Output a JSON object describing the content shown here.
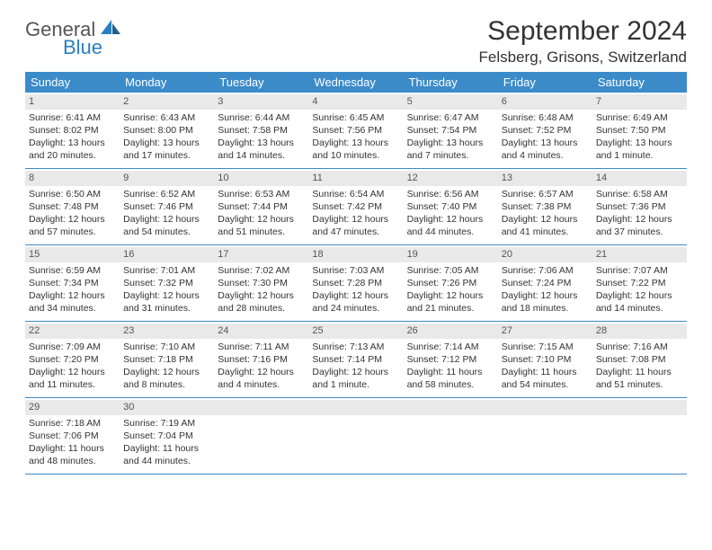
{
  "logo": {
    "textA": "General",
    "textB": "Blue"
  },
  "title": "September 2024",
  "location": "Felsberg, Grisons, Switzerland",
  "colors": {
    "header_bg": "#3b8bc9",
    "header_text": "#ffffff",
    "daynum_bg": "#e9e9e9",
    "body_text": "#333333",
    "rule": "#3b8bc9",
    "logo_blue": "#2a7fbf"
  },
  "typography": {
    "title_fontsize": 30,
    "location_fontsize": 17,
    "dow_fontsize": 13,
    "cell_fontsize": 10.5
  },
  "dow": [
    "Sunday",
    "Monday",
    "Tuesday",
    "Wednesday",
    "Thursday",
    "Friday",
    "Saturday"
  ],
  "days": [
    {
      "n": "1",
      "sunrise": "Sunrise: 6:41 AM",
      "sunset": "Sunset: 8:02 PM",
      "day1": "Daylight: 13 hours",
      "day2": "and 20 minutes."
    },
    {
      "n": "2",
      "sunrise": "Sunrise: 6:43 AM",
      "sunset": "Sunset: 8:00 PM",
      "day1": "Daylight: 13 hours",
      "day2": "and 17 minutes."
    },
    {
      "n": "3",
      "sunrise": "Sunrise: 6:44 AM",
      "sunset": "Sunset: 7:58 PM",
      "day1": "Daylight: 13 hours",
      "day2": "and 14 minutes."
    },
    {
      "n": "4",
      "sunrise": "Sunrise: 6:45 AM",
      "sunset": "Sunset: 7:56 PM",
      "day1": "Daylight: 13 hours",
      "day2": "and 10 minutes."
    },
    {
      "n": "5",
      "sunrise": "Sunrise: 6:47 AM",
      "sunset": "Sunset: 7:54 PM",
      "day1": "Daylight: 13 hours",
      "day2": "and 7 minutes."
    },
    {
      "n": "6",
      "sunrise": "Sunrise: 6:48 AM",
      "sunset": "Sunset: 7:52 PM",
      "day1": "Daylight: 13 hours",
      "day2": "and 4 minutes."
    },
    {
      "n": "7",
      "sunrise": "Sunrise: 6:49 AM",
      "sunset": "Sunset: 7:50 PM",
      "day1": "Daylight: 13 hours",
      "day2": "and 1 minute."
    },
    {
      "n": "8",
      "sunrise": "Sunrise: 6:50 AM",
      "sunset": "Sunset: 7:48 PM",
      "day1": "Daylight: 12 hours",
      "day2": "and 57 minutes."
    },
    {
      "n": "9",
      "sunrise": "Sunrise: 6:52 AM",
      "sunset": "Sunset: 7:46 PM",
      "day1": "Daylight: 12 hours",
      "day2": "and 54 minutes."
    },
    {
      "n": "10",
      "sunrise": "Sunrise: 6:53 AM",
      "sunset": "Sunset: 7:44 PM",
      "day1": "Daylight: 12 hours",
      "day2": "and 51 minutes."
    },
    {
      "n": "11",
      "sunrise": "Sunrise: 6:54 AM",
      "sunset": "Sunset: 7:42 PM",
      "day1": "Daylight: 12 hours",
      "day2": "and 47 minutes."
    },
    {
      "n": "12",
      "sunrise": "Sunrise: 6:56 AM",
      "sunset": "Sunset: 7:40 PM",
      "day1": "Daylight: 12 hours",
      "day2": "and 44 minutes."
    },
    {
      "n": "13",
      "sunrise": "Sunrise: 6:57 AM",
      "sunset": "Sunset: 7:38 PM",
      "day1": "Daylight: 12 hours",
      "day2": "and 41 minutes."
    },
    {
      "n": "14",
      "sunrise": "Sunrise: 6:58 AM",
      "sunset": "Sunset: 7:36 PM",
      "day1": "Daylight: 12 hours",
      "day2": "and 37 minutes."
    },
    {
      "n": "15",
      "sunrise": "Sunrise: 6:59 AM",
      "sunset": "Sunset: 7:34 PM",
      "day1": "Daylight: 12 hours",
      "day2": "and 34 minutes."
    },
    {
      "n": "16",
      "sunrise": "Sunrise: 7:01 AM",
      "sunset": "Sunset: 7:32 PM",
      "day1": "Daylight: 12 hours",
      "day2": "and 31 minutes."
    },
    {
      "n": "17",
      "sunrise": "Sunrise: 7:02 AM",
      "sunset": "Sunset: 7:30 PM",
      "day1": "Daylight: 12 hours",
      "day2": "and 28 minutes."
    },
    {
      "n": "18",
      "sunrise": "Sunrise: 7:03 AM",
      "sunset": "Sunset: 7:28 PM",
      "day1": "Daylight: 12 hours",
      "day2": "and 24 minutes."
    },
    {
      "n": "19",
      "sunrise": "Sunrise: 7:05 AM",
      "sunset": "Sunset: 7:26 PM",
      "day1": "Daylight: 12 hours",
      "day2": "and 21 minutes."
    },
    {
      "n": "20",
      "sunrise": "Sunrise: 7:06 AM",
      "sunset": "Sunset: 7:24 PM",
      "day1": "Daylight: 12 hours",
      "day2": "and 18 minutes."
    },
    {
      "n": "21",
      "sunrise": "Sunrise: 7:07 AM",
      "sunset": "Sunset: 7:22 PM",
      "day1": "Daylight: 12 hours",
      "day2": "and 14 minutes."
    },
    {
      "n": "22",
      "sunrise": "Sunrise: 7:09 AM",
      "sunset": "Sunset: 7:20 PM",
      "day1": "Daylight: 12 hours",
      "day2": "and 11 minutes."
    },
    {
      "n": "23",
      "sunrise": "Sunrise: 7:10 AM",
      "sunset": "Sunset: 7:18 PM",
      "day1": "Daylight: 12 hours",
      "day2": "and 8 minutes."
    },
    {
      "n": "24",
      "sunrise": "Sunrise: 7:11 AM",
      "sunset": "Sunset: 7:16 PM",
      "day1": "Daylight: 12 hours",
      "day2": "and 4 minutes."
    },
    {
      "n": "25",
      "sunrise": "Sunrise: 7:13 AM",
      "sunset": "Sunset: 7:14 PM",
      "day1": "Daylight: 12 hours",
      "day2": "and 1 minute."
    },
    {
      "n": "26",
      "sunrise": "Sunrise: 7:14 AM",
      "sunset": "Sunset: 7:12 PM",
      "day1": "Daylight: 11 hours",
      "day2": "and 58 minutes."
    },
    {
      "n": "27",
      "sunrise": "Sunrise: 7:15 AM",
      "sunset": "Sunset: 7:10 PM",
      "day1": "Daylight: 11 hours",
      "day2": "and 54 minutes."
    },
    {
      "n": "28",
      "sunrise": "Sunrise: 7:16 AM",
      "sunset": "Sunset: 7:08 PM",
      "day1": "Daylight: 11 hours",
      "day2": "and 51 minutes."
    },
    {
      "n": "29",
      "sunrise": "Sunrise: 7:18 AM",
      "sunset": "Sunset: 7:06 PM",
      "day1": "Daylight: 11 hours",
      "day2": "and 48 minutes."
    },
    {
      "n": "30",
      "sunrise": "Sunrise: 7:19 AM",
      "sunset": "Sunset: 7:04 PM",
      "day1": "Daylight: 11 hours",
      "day2": "and 44 minutes."
    }
  ]
}
